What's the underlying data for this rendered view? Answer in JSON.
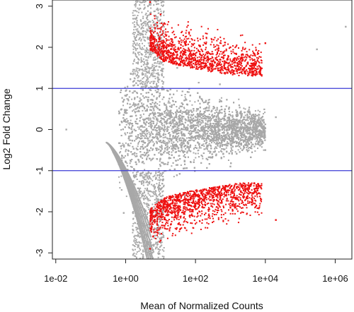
{
  "chart_data": {
    "type": "scatter",
    "title": "",
    "xlabel": "Mean of Normalized Counts",
    "ylabel": "Log2 Fold Change",
    "x_scale": "log10",
    "xlim": [
      0.008,
      3000000
    ],
    "ylim": [
      -3.15,
      3.15
    ],
    "x_ticks": [
      0.01,
      1,
      100,
      10000,
      1000000
    ],
    "x_tick_labels": [
      "1e-02",
      "1e+00",
      "1e+02",
      "1e+04",
      "1e+06"
    ],
    "y_ticks": [
      -3,
      -2,
      -1,
      0,
      1,
      2,
      3
    ],
    "y_tick_labels": [
      "-3",
      "-2",
      "-1",
      "0",
      "1",
      "2",
      "3"
    ],
    "grid": false,
    "legend": "none",
    "hlines": [
      {
        "y": 1,
        "color": "#3b3bd6"
      },
      {
        "y": -1,
        "color": "#3b3bd6"
      }
    ],
    "series": [
      {
        "color": "#a8a8a8",
        "note_points": "dense cloud of non-significant genes",
        "x": [
          0.02,
          2,
          3,
          4,
          5,
          8,
          10,
          20,
          30,
          50,
          100,
          200,
          300,
          500,
          1000,
          2000,
          3000,
          5000,
          10000,
          20000,
          300000,
          2000000
        ],
        "y": [
          0.0,
          0.5,
          -0.8,
          1.2,
          -1.5,
          2.0,
          -2.2,
          0.3,
          1.5,
          -1.6,
          0.1,
          0.7,
          -0.6,
          1.1,
          -0.9,
          0.4,
          -0.3,
          0.2,
          -0.5,
          0.3,
          1.95,
          2.5
        ]
      },
      {
        "color": "#ee1111",
        "note_points": "significant up-regulated and down-regulated genes",
        "x": [
          5,
          8,
          10,
          20,
          50,
          100,
          200,
          500,
          1000,
          2000,
          5000,
          10000,
          5,
          8,
          10,
          20,
          50,
          100,
          200,
          500,
          1000,
          2000,
          5000,
          20000
        ],
        "y": [
          3.1,
          2.6,
          2.8,
          2.2,
          1.9,
          1.8,
          1.6,
          1.7,
          2.0,
          1.5,
          1.6,
          2.1,
          -2.9,
          -2.5,
          -2.7,
          -2.3,
          -2.0,
          -1.8,
          -1.6,
          -1.7,
          -1.9,
          -1.5,
          -1.8,
          -2.2
        ]
      }
    ]
  }
}
